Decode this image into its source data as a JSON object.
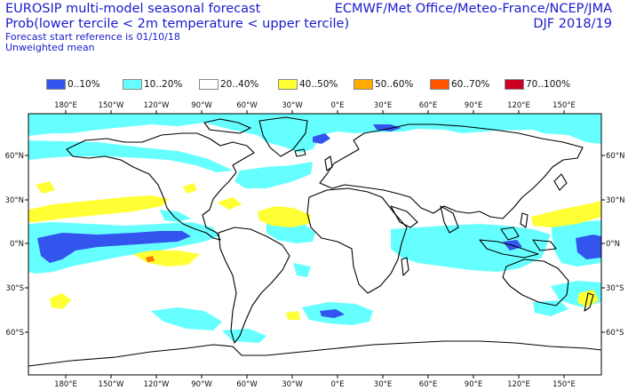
{
  "header": {
    "title_line1": "EUROSIP multi-model seasonal forecast",
    "title_line2": "Prob(lower tercile < 2m temperature < upper tercile)",
    "subtitle_line1": "Forecast start reference is 01/10/18",
    "subtitle_line2": "Unweighted mean",
    "agencies": "ECMWF/Met Office/Meteo-France/NCEP/JMA",
    "season": "DJF 2018/19"
  },
  "legend": [
    {
      "label": "0..10%",
      "color": "#3355ee"
    },
    {
      "label": "10..20%",
      "color": "#66ffff"
    },
    {
      "label": "20..40%",
      "color": "#ffffff"
    },
    {
      "label": "40..50%",
      "color": "#ffff33"
    },
    {
      "label": "50..60%",
      "color": "#ffaa00"
    },
    {
      "label": "60..70%",
      "color": "#ff5500"
    },
    {
      "label": "70..100%",
      "color": "#cc0022"
    }
  ],
  "axes": {
    "lon_labels": [
      "180°E",
      "150°W",
      "120°W",
      "90°W",
      "60°W",
      "30°W",
      "0°E",
      "30°E",
      "60°E",
      "90°E",
      "120°E",
      "150°E"
    ],
    "lat_labels": [
      "60°N",
      "30°N",
      "0°N",
      "30°S",
      "60°S"
    ]
  },
  "map": {
    "projection": "equirectangular",
    "lon_range": [
      -200,
      185
    ],
    "lat_range": [
      -87,
      87
    ],
    "land_outline": "#000000",
    "ocean_default": "#ffffff"
  }
}
